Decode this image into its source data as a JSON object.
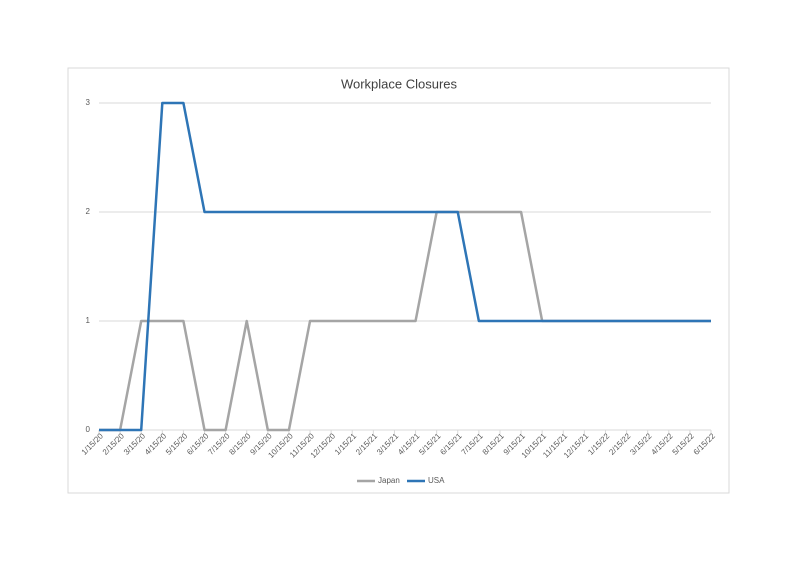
{
  "chart_data": {
    "type": "line",
    "title": "Workplace Closures",
    "categories": [
      "1/15/20",
      "2/15/20",
      "3/15/20",
      "4/15/20",
      "5/15/20",
      "6/15/20",
      "7/15/20",
      "8/15/20",
      "9/15/20",
      "10/15/20",
      "11/15/20",
      "12/15/20",
      "1/15/21",
      "2/15/21",
      "3/15/21",
      "4/15/21",
      "5/15/21",
      "6/15/21",
      "7/15/21",
      "8/15/21",
      "9/15/21",
      "10/15/21",
      "11/15/21",
      "12/15/21",
      "1/15/22",
      "2/15/22",
      "3/15/22",
      "4/15/22",
      "5/15/22",
      "6/15/22"
    ],
    "series": [
      {
        "name": "Japan",
        "color": "#a5a5a5",
        "values": [
          0,
          0,
          1,
          1,
          1,
          0,
          0,
          1,
          0,
          0,
          1,
          1,
          1,
          1,
          1,
          1,
          2,
          2,
          2,
          2,
          2,
          1,
          1,
          1,
          1,
          1,
          1,
          1,
          1,
          1
        ]
      },
      {
        "name": "USA",
        "color": "#2e75b6",
        "values": [
          0,
          0,
          0,
          3,
          3,
          2,
          2,
          2,
          2,
          2,
          2,
          2,
          2,
          2,
          2,
          2,
          2,
          2,
          1,
          1,
          1,
          1,
          1,
          1,
          1,
          1,
          1,
          1,
          1,
          1
        ]
      }
    ],
    "ylim": [
      0,
      3
    ],
    "yticks": [
      0,
      1,
      2,
      3
    ],
    "grid": true,
    "legend": "bottom"
  }
}
